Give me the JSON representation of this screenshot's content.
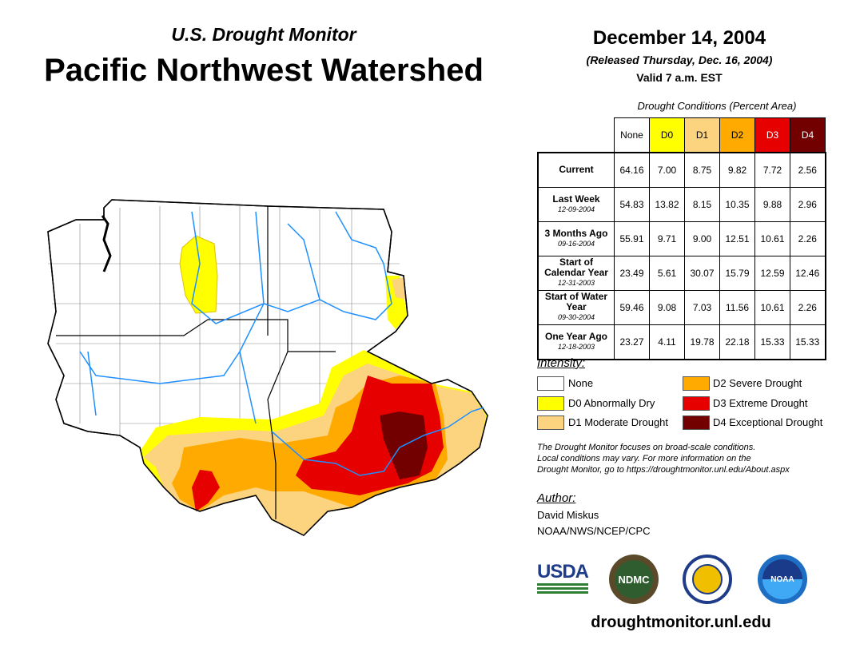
{
  "header": {
    "subtitle": "U.S. Drought Monitor",
    "title": "Pacific Northwest Watershed",
    "date": "December 14, 2004",
    "released": "(Released Thursday, Dec. 16, 2004)",
    "valid": "Valid 7 a.m. EST"
  },
  "table": {
    "caption": "Drought Conditions (Percent Area)",
    "columns": [
      "None",
      "D0",
      "D1",
      "D2",
      "D3",
      "D4"
    ],
    "column_colors": [
      "#ffffff",
      "#ffff00",
      "#fcd37f",
      "#ffaa00",
      "#e60000",
      "#730000"
    ],
    "rows": [
      {
        "label": "Current",
        "date": "",
        "values": [
          "64.16",
          "7.00",
          "8.75",
          "9.82",
          "7.72",
          "2.56"
        ]
      },
      {
        "label": "Last Week",
        "date": "12-09-2004",
        "values": [
          "54.83",
          "13.82",
          "8.15",
          "10.35",
          "9.88",
          "2.96"
        ]
      },
      {
        "label": "3 Months Ago",
        "date": "09-16-2004",
        "values": [
          "55.91",
          "9.71",
          "9.00",
          "12.51",
          "10.61",
          "2.26"
        ]
      },
      {
        "label": "Start of Calendar Year",
        "date": "12-31-2003",
        "values": [
          "23.49",
          "5.61",
          "30.07",
          "15.79",
          "12.59",
          "12.46"
        ]
      },
      {
        "label": "Start of Water Year",
        "date": "09-30-2004",
        "values": [
          "59.46",
          "9.08",
          "7.03",
          "11.56",
          "10.61",
          "2.26"
        ]
      },
      {
        "label": "One Year Ago",
        "date": "12-18-2003",
        "values": [
          "23.27",
          "4.11",
          "19.78",
          "22.18",
          "15.33",
          "15.33"
        ]
      }
    ]
  },
  "legend": {
    "title": "Intensity:",
    "items": [
      {
        "label": "None",
        "color": "#ffffff"
      },
      {
        "label": "D0 Abnormally Dry",
        "color": "#ffff00"
      },
      {
        "label": "D1 Moderate Drought",
        "color": "#fcd37f"
      },
      {
        "label": "D2 Severe Drought",
        "color": "#ffaa00"
      },
      {
        "label": "D3 Extreme Drought",
        "color": "#e60000"
      },
      {
        "label": "D4 Exceptional Drought",
        "color": "#730000"
      }
    ]
  },
  "note": [
    "The Drought Monitor focuses on broad-scale conditions.",
    "Local conditions may vary. For more information on the",
    "Drought Monitor, go to https://droughtmonitor.unl.edu/About.aspx"
  ],
  "author": {
    "label": "Author:",
    "name": "David Miskus",
    "org": "NOAA/NWS/NCEP/CPC"
  },
  "logos": {
    "usda": "USDA",
    "ndmc": "NDMC",
    "noaa": "NOAA"
  },
  "footer_url": "droughtmonitor.unl.edu"
}
